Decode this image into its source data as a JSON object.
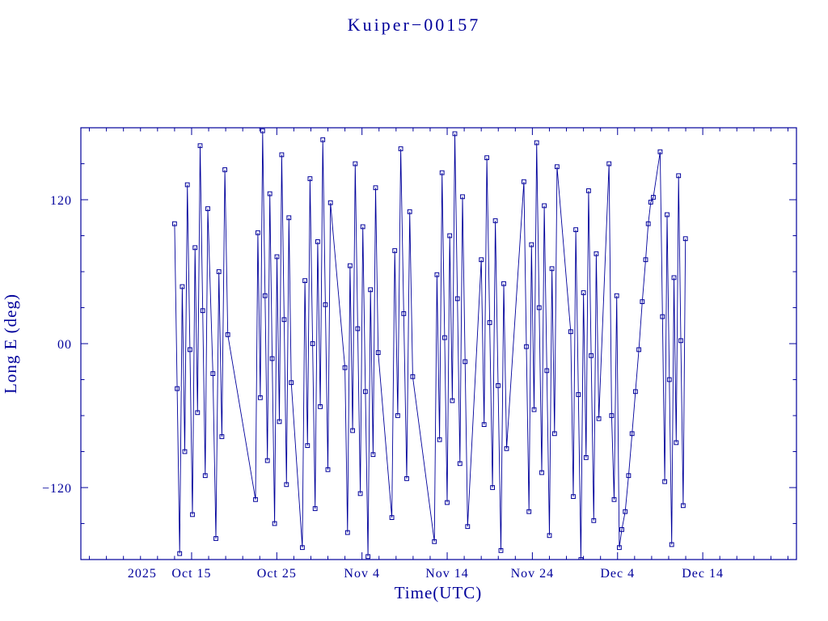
{
  "window": {
    "background": "#FFFFFF"
  },
  "chart_data": {
    "type": "line",
    "title": "Kuiper−00157",
    "xlabel": "Time(UTC)",
    "ylabel": "Long E (deg)",
    "color": "#00009B",
    "marker": "open-square",
    "x_unit": "days since 2025-10-10 (UTC)",
    "xlim": [
      -8,
      76
    ],
    "ylim": [
      -180,
      180
    ],
    "x_minor_step": 2,
    "y_minor_step": 30,
    "x_year_label": {
      "day": -0.8,
      "label": "2025"
    },
    "x_major_ticks": [
      {
        "day": 5,
        "label": "Oct 15"
      },
      {
        "day": 15,
        "label": "Oct 25"
      },
      {
        "day": 25,
        "label": "Nov 4"
      },
      {
        "day": 35,
        "label": "Nov 14"
      },
      {
        "day": 45,
        "label": "Nov 24"
      },
      {
        "day": 55,
        "label": "Dec 4"
      },
      {
        "day": 65,
        "label": "Dec 14"
      }
    ],
    "y_major_ticks": [
      {
        "value": 120,
        "label": "120"
      },
      {
        "value": 0,
        "label": "00"
      },
      {
        "value": -120,
        "label": "−120"
      }
    ],
    "points": [
      [
        3.0,
        100
      ],
      [
        3.3,
        -37.5
      ],
      [
        3.6,
        -175
      ],
      [
        3.9,
        47.5
      ],
      [
        4.2,
        -90
      ],
      [
        4.5,
        132.5
      ],
      [
        4.8,
        -5
      ],
      [
        5.1,
        -142.5
      ],
      [
        5.4,
        80
      ],
      [
        5.7,
        -57.5
      ],
      [
        6.0,
        165
      ],
      [
        6.3,
        27.5
      ],
      [
        6.6,
        -110
      ],
      [
        6.9,
        112.5
      ],
      [
        7.5,
        -25
      ],
      [
        7.85,
        -162.5
      ],
      [
        8.2,
        60
      ],
      [
        8.55,
        -77.5
      ],
      [
        8.9,
        145
      ],
      [
        9.25,
        7.5
      ],
      [
        12.5,
        -130
      ],
      [
        12.78,
        92.5
      ],
      [
        13.06,
        -45
      ],
      [
        13.34,
        177.5
      ],
      [
        13.62,
        40
      ],
      [
        13.9,
        -97.5
      ],
      [
        14.18,
        125
      ],
      [
        14.46,
        -12.5
      ],
      [
        14.74,
        -150
      ],
      [
        15.02,
        72.5
      ],
      [
        15.3,
        -65
      ],
      [
        15.58,
        157.5
      ],
      [
        15.86,
        20
      ],
      [
        16.14,
        -117.5
      ],
      [
        16.42,
        105
      ],
      [
        16.7,
        -32.5
      ],
      [
        18.0,
        -170
      ],
      [
        18.3,
        52.5
      ],
      [
        18.6,
        -85
      ],
      [
        18.9,
        137.5
      ],
      [
        19.2,
        0
      ],
      [
        19.5,
        -137.5
      ],
      [
        19.8,
        85
      ],
      [
        20.1,
        -52.5
      ],
      [
        20.4,
        170
      ],
      [
        20.7,
        32.5
      ],
      [
        21.0,
        -105
      ],
      [
        21.3,
        117.5
      ],
      [
        23.0,
        -20
      ],
      [
        23.3,
        -157.5
      ],
      [
        23.6,
        65
      ],
      [
        23.9,
        -72.5
      ],
      [
        24.2,
        150
      ],
      [
        24.5,
        12.5
      ],
      [
        24.8,
        -125
      ],
      [
        25.1,
        97.5
      ],
      [
        25.4,
        -40
      ],
      [
        25.7,
        -177.5
      ],
      [
        26.0,
        45
      ],
      [
        26.3,
        -92.5
      ],
      [
        26.6,
        130
      ],
      [
        26.9,
        -7.5
      ],
      [
        28.5,
        -145
      ],
      [
        28.85,
        77.5
      ],
      [
        29.2,
        -60
      ],
      [
        29.55,
        162.5
      ],
      [
        29.9,
        25
      ],
      [
        30.25,
        -112.5
      ],
      [
        30.6,
        110
      ],
      [
        30.95,
        -27.5
      ],
      [
        33.5,
        -165
      ],
      [
        33.8,
        57.5
      ],
      [
        34.1,
        -80
      ],
      [
        34.4,
        142.5
      ],
      [
        34.7,
        5
      ],
      [
        35.0,
        -132.5
      ],
      [
        35.3,
        90
      ],
      [
        35.6,
        -47.5
      ],
      [
        35.9,
        175
      ],
      [
        36.2,
        37.5
      ],
      [
        36.5,
        -100
      ],
      [
        36.8,
        122.5
      ],
      [
        37.1,
        -15
      ],
      [
        37.4,
        -152.5
      ],
      [
        39.0,
        70
      ],
      [
        39.33,
        -67.5
      ],
      [
        39.66,
        155
      ],
      [
        39.99,
        17.5
      ],
      [
        40.32,
        -120
      ],
      [
        40.65,
        102.5
      ],
      [
        40.98,
        -35
      ],
      [
        41.31,
        -172.5
      ],
      [
        41.64,
        50
      ],
      [
        41.97,
        -87.5
      ],
      [
        44.0,
        135
      ],
      [
        44.3,
        -2.5
      ],
      [
        44.6,
        -140
      ],
      [
        44.9,
        82.5
      ],
      [
        45.2,
        -55
      ],
      [
        45.5,
        167.5
      ],
      [
        45.8,
        30
      ],
      [
        46.1,
        -107.5
      ],
      [
        46.4,
        115
      ],
      [
        46.7,
        -22.5
      ],
      [
        47.0,
        -160
      ],
      [
        47.3,
        62.5
      ],
      [
        47.6,
        -75
      ],
      [
        47.9,
        147.5
      ],
      [
        49.5,
        10
      ],
      [
        49.8,
        -127.5
      ],
      [
        50.1,
        95
      ],
      [
        50.4,
        -42.5
      ],
      [
        50.7,
        -180
      ],
      [
        51.0,
        42.5
      ],
      [
        51.3,
        -95
      ],
      [
        51.6,
        127.5
      ],
      [
        51.9,
        -10
      ],
      [
        52.2,
        -147.5
      ],
      [
        52.5,
        75
      ],
      [
        52.8,
        -62.5
      ],
      [
        54.0,
        150
      ],
      [
        54.3,
        -60
      ],
      [
        54.6,
        -130
      ],
      [
        54.9,
        40
      ],
      [
        55.2,
        -170
      ],
      [
        55.5,
        -155
      ],
      [
        55.9,
        -140
      ],
      [
        56.3,
        -110
      ],
      [
        56.7,
        -75
      ],
      [
        57.1,
        -40
      ],
      [
        57.5,
        -5
      ],
      [
        57.9,
        35
      ],
      [
        58.3,
        70
      ],
      [
        58.6,
        100
      ],
      [
        58.9,
        118
      ],
      [
        59.2,
        122
      ],
      [
        60.0,
        160
      ],
      [
        60.27,
        22.5
      ],
      [
        60.54,
        -115
      ],
      [
        60.81,
        107.5
      ],
      [
        61.08,
        -30
      ],
      [
        61.35,
        -167.5
      ],
      [
        61.62,
        55
      ],
      [
        61.89,
        -82.5
      ],
      [
        62.16,
        140
      ],
      [
        62.43,
        2.5
      ],
      [
        62.7,
        -135
      ],
      [
        62.97,
        87.5
      ]
    ]
  }
}
